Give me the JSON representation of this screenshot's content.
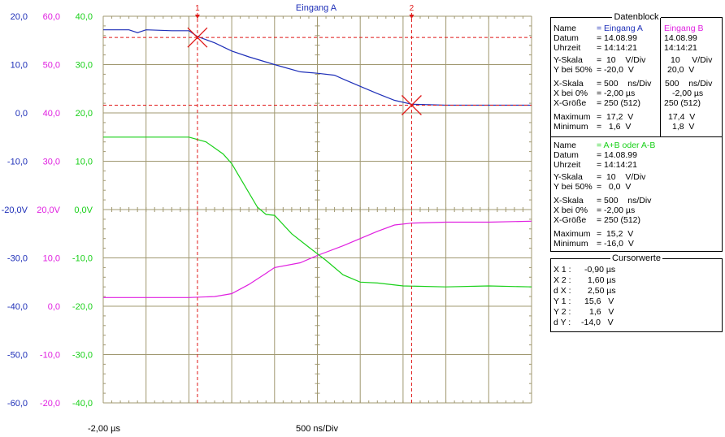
{
  "colors": {
    "channel_a": "#1e2fb8",
    "channel_b": "#e020e0",
    "channel_diff": "#18d018",
    "scale_a_text": "#1e2fb8",
    "scale_b_text": "#e020e0",
    "scale_diff_text": "#18d018",
    "grid": "#a09870",
    "cursor": "#e01818"
  },
  "chart_data": {
    "type": "line",
    "title": "Eingang A",
    "x_start_label": "-2,00 µs",
    "x_div_label": "500 ns/Div",
    "xlim": [
      -2.0,
      3.0
    ],
    "x_unit": "µs",
    "divisions_x": 10,
    "divisions_y": 8,
    "scales": {
      "a": {
        "ylim": [
          -60,
          20
        ],
        "ticks": [
          "20,0",
          "10,0",
          "0,0",
          "-10,0",
          "-20,0V",
          "-30,0",
          "-40,0",
          "-50,0",
          "-60,0"
        ]
      },
      "b": {
        "ylim": [
          -20,
          60
        ],
        "ticks": [
          "60,0",
          "50,0",
          "40,0",
          "30,0",
          "20,0V",
          "10,0",
          "0,0",
          "-10,0",
          "-20,0"
        ]
      },
      "diff": {
        "ylim": [
          -40,
          40
        ],
        "ticks": [
          "40,0",
          "30,0",
          "20,0",
          "10,0",
          "0,0V",
          "-10,0",
          "-20,0",
          "-30,0",
          "-40,0"
        ]
      }
    },
    "series": [
      {
        "name": "Eingang A",
        "scale": "a",
        "x": [
          -2.0,
          -1.7,
          -1.6,
          -1.5,
          -1.2,
          -1.0,
          -0.9,
          -0.7,
          -0.5,
          -0.3,
          0.0,
          0.1,
          0.3,
          0.5,
          0.7,
          0.8,
          1.0,
          1.2,
          1.4,
          1.6,
          1.8,
          2.0,
          2.5,
          3.0
        ],
        "y": [
          17.2,
          17.2,
          16.6,
          17.2,
          17.0,
          17.0,
          15.8,
          14.5,
          12.8,
          11.6,
          10.0,
          9.5,
          8.5,
          8.2,
          7.8,
          7.0,
          5.5,
          4.0,
          2.6,
          1.8,
          1.7,
          1.6,
          1.6,
          1.6
        ]
      },
      {
        "name": "Eingang B",
        "scale": "b",
        "x": [
          -2.0,
          -1.0,
          -0.7,
          -0.5,
          -0.3,
          -0.1,
          0.0,
          0.3,
          0.5,
          0.8,
          1.0,
          1.2,
          1.4,
          1.6,
          2.0,
          2.5,
          3.0
        ],
        "y": [
          1.8,
          1.8,
          2.0,
          2.6,
          4.5,
          6.8,
          8.0,
          9.0,
          10.5,
          12.5,
          14.0,
          15.5,
          16.8,
          17.2,
          17.4,
          17.4,
          17.6
        ]
      },
      {
        "name": "A+B oder A-B",
        "scale": "diff",
        "x": [
          -2.0,
          -1.0,
          -0.8,
          -0.6,
          -0.5,
          -0.4,
          -0.2,
          -0.1,
          0.0,
          0.2,
          0.4,
          0.6,
          0.8,
          1.0,
          1.2,
          1.5,
          2.0,
          2.5,
          3.0
        ],
        "y": [
          15.0,
          15.0,
          14.0,
          11.5,
          9.5,
          6.5,
          0.5,
          -1.0,
          -1.2,
          -5.0,
          -7.8,
          -10.5,
          -13.5,
          -15.0,
          -15.2,
          -15.8,
          -16.0,
          -15.8,
          -16.0
        ]
      }
    ],
    "cursors": [
      {
        "label": "1",
        "x": -0.9,
        "y": 15.6
      },
      {
        "label": "2",
        "x": 1.6,
        "y": 1.6
      }
    ]
  },
  "datenblock": {
    "title": "Datenblock",
    "a": {
      "name_label": "Name",
      "name_value": "= Eingang A",
      "datum_label": "Datum",
      "datum_value": "= 14.08.99",
      "uhrzeit_label": "Uhrzeit",
      "uhrzeit_value": "= 14:14:21",
      "yskala_label": "Y-Skala",
      "yskala_value": "=  10    V/Div",
      "ybei_label": "Y bei 50%",
      "ybei_value": "= -20,0  V",
      "xskala_label": "X-Skala",
      "xskala_value": "= 500    ns/Div",
      "xbei_label": "X bei 0%",
      "xbei_value": "= -2,00 µs",
      "xgroesse_label": "X-Größe",
      "xgroesse_value": "= 250 (512)",
      "max_label": "Maximum",
      "max_value": "=  17,2  V",
      "min_label": "Minimum",
      "min_value": "=   1,6  V"
    },
    "b": {
      "name": "Eingang B",
      "datum": "14.08.99",
      "uhrzeit": "14:14:21",
      "yskala": "10     V/Div",
      "ybei": "20,0  V",
      "xskala": "500    ns/Div",
      "xbei": "-2,00 µs",
      "xgroesse": "250 (512)",
      "max": "17,4  V",
      "min": "1,8  V"
    },
    "c": {
      "name_label": "Name",
      "name_value": "= A+B oder A-B",
      "datum_label": "Datum",
      "datum_value": "= 14.08.99",
      "uhrzeit_label": "Uhrzeit",
      "uhrzeit_value": "= 14:14:21",
      "yskala_label": "Y-Skala",
      "yskala_value": "=  10    V/Div",
      "ybei_label": "Y bei 50%",
      "ybei_value": "=   0,0  V",
      "xskala_label": "X-Skala",
      "xskala_value": "= 500    ns/Div",
      "xbei_label": "X bei 0%",
      "xbei_value": "= -2,00 µs",
      "xgroesse_label": "X-Größe",
      "xgroesse_value": "= 250 (512)",
      "max_label": "Maximum",
      "max_value": "=  15,2  V",
      "min_label": "Minimum",
      "min_value": "= -16,0  V"
    }
  },
  "cursorwerte": {
    "title": "Cursorwerte",
    "rows": [
      {
        "label": "X 1 :",
        "value": "-0,90 µs"
      },
      {
        "label": "X 2 :",
        "value": "1,60 µs"
      },
      {
        "label": "d X :",
        "value": "2,50 µs"
      },
      {
        "label": "Y 1 :",
        "value": "15,6   V"
      },
      {
        "label": "Y 2 :",
        "value": "1,6   V"
      },
      {
        "label": "d Y :",
        "value": "-14,0   V"
      }
    ]
  }
}
